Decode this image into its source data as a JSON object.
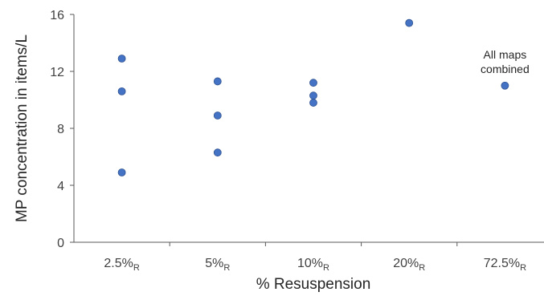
{
  "chart_data": {
    "type": "scatter",
    "xlabel": "% Resuspension",
    "ylabel": "MP concentration in items/L",
    "ylim": [
      0,
      16
    ],
    "yticks": [
      0,
      4,
      8,
      12,
      16
    ],
    "categories": [
      {
        "main": "2.5%",
        "sub": "R"
      },
      {
        "main": "5%",
        "sub": "R"
      },
      {
        "main": "10%",
        "sub": "R"
      },
      {
        "main": "20%",
        "sub": "R"
      },
      {
        "main": "72.5%",
        "sub": "R"
      }
    ],
    "points": [
      {
        "category": 0,
        "y": 12.9
      },
      {
        "category": 0,
        "y": 10.6
      },
      {
        "category": 0,
        "y": 4.9
      },
      {
        "category": 1,
        "y": 11.3
      },
      {
        "category": 1,
        "y": 8.9
      },
      {
        "category": 1,
        "y": 6.3
      },
      {
        "category": 2,
        "y": 11.2
      },
      {
        "category": 2,
        "y": 10.3
      },
      {
        "category": 2,
        "y": 9.8
      },
      {
        "category": 3,
        "y": 15.4
      },
      {
        "category": 4,
        "y": 11.0
      }
    ],
    "annotations": [
      {
        "lines": [
          "All maps",
          "combined"
        ],
        "category": 4
      }
    ],
    "marker_color": "#4472C4",
    "marker_edge_color": "#2F528F",
    "axis_color": "#595959",
    "grid": false,
    "legend": "none"
  }
}
